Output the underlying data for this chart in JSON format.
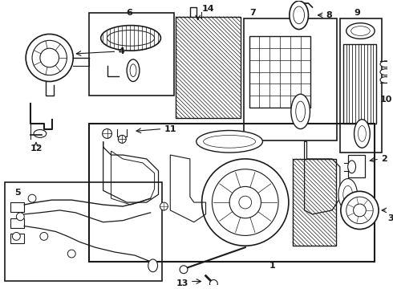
{
  "bg_color": "#ffffff",
  "line_color": "#1a1a1a",
  "fig_width": 4.9,
  "fig_height": 3.6,
  "dpi": 100,
  "label_fontsize": 8.0,
  "label_bold": true
}
